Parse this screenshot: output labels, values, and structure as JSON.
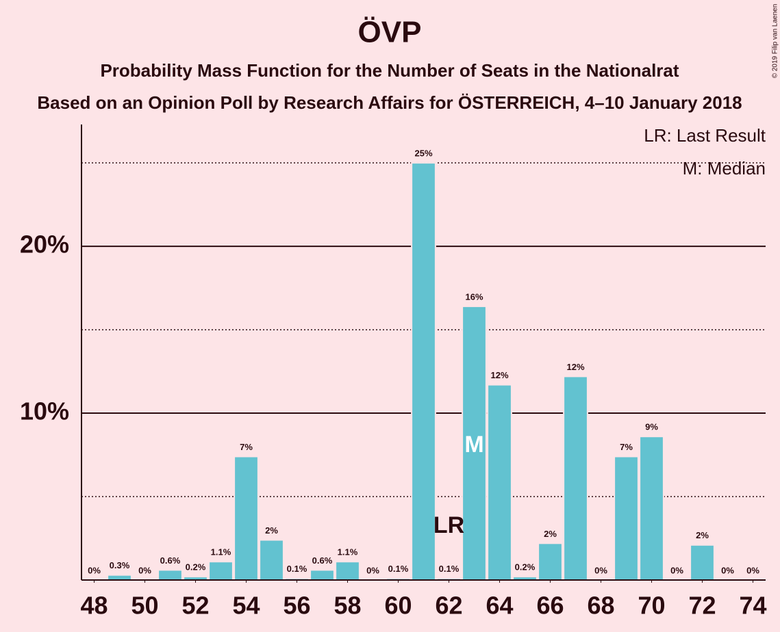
{
  "chart_data": {
    "type": "bar",
    "title": "ÖVP",
    "subtitle": "Probability Mass Function for the Number of Seats in the Nationalrat",
    "subtitle2": "Based on an Opinion Poll by Research Affairs for ÖSTERREICH, 4–10 January 2018",
    "copyright": "© 2019 Filip van Laenen",
    "legend": [
      "LR: Last Result",
      "M: Median"
    ],
    "color": "#62c2d0",
    "x": [
      48,
      49,
      50,
      51,
      52,
      53,
      54,
      55,
      56,
      57,
      58,
      59,
      60,
      61,
      62,
      63,
      64,
      65,
      66,
      67,
      68,
      69,
      70,
      71,
      72,
      73,
      74
    ],
    "values": [
      0,
      0.3,
      0,
      0.6,
      0.2,
      1.1,
      7.4,
      2.4,
      0.1,
      0.6,
      1.1,
      0,
      0.1,
      25,
      0.1,
      16.4,
      11.7,
      0.2,
      2.2,
      12.2,
      0,
      7.4,
      8.6,
      0,
      2.1,
      0,
      0
    ],
    "value_labels": [
      "0%",
      "0.3%",
      "0%",
      "0.6%",
      "0.2%",
      "1.1%",
      "7%",
      "2%",
      "0.1%",
      "0.6%",
      "1.1%",
      "0%",
      "0.1%",
      "25%",
      "0.1%",
      "16%",
      "12%",
      "0.2%",
      "2%",
      "12%",
      "0%",
      "7%",
      "9%",
      "0%",
      "2%",
      "0%",
      "0%"
    ],
    "xlim": [
      47.5,
      74.5
    ],
    "xticks": [
      48,
      50,
      52,
      54,
      56,
      58,
      60,
      62,
      64,
      66,
      68,
      70,
      72,
      74
    ],
    "ylim": [
      0,
      27.3
    ],
    "yticks": [
      {
        "value": 10,
        "label": "10%"
      },
      {
        "value": 20,
        "label": "20%"
      }
    ],
    "minor_yticks": [
      5,
      15,
      25
    ],
    "annotations": [
      {
        "x": 62,
        "text": "LR"
      },
      {
        "x": 63,
        "text": "M"
      }
    ]
  }
}
